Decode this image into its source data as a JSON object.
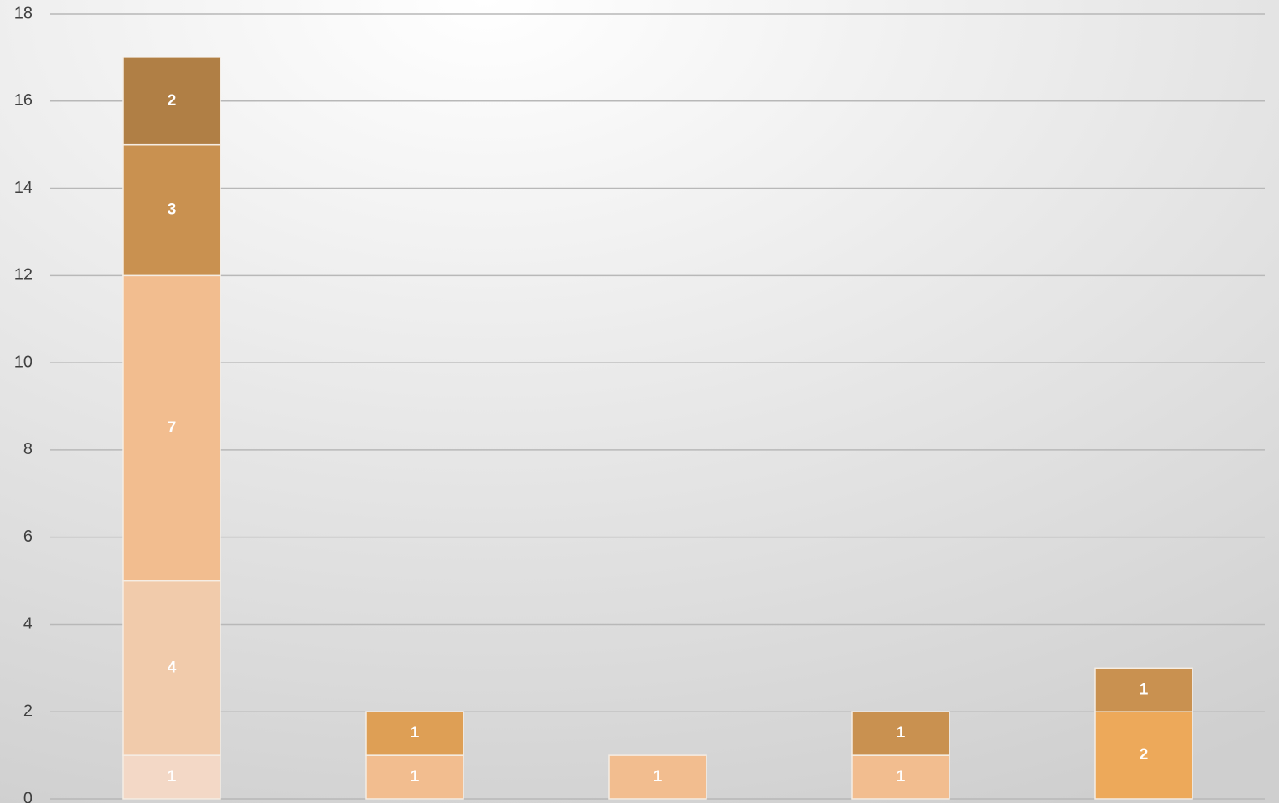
{
  "chart_data": {
    "type": "stacked_bar",
    "categories": [
      null,
      null,
      null,
      null,
      null
    ],
    "series": [
      {
        "color": "#f3d8c6",
        "values": [
          1,
          null,
          null,
          null,
          null
        ]
      },
      {
        "color": "#f1cbab",
        "values": [
          4,
          null,
          null,
          null,
          null
        ]
      },
      {
        "color": "#f2bd8f",
        "values": [
          7,
          1,
          1,
          1,
          null
        ]
      },
      {
        "color": "#de9f55",
        "values": [
          null,
          1,
          null,
          null,
          null
        ]
      },
      {
        "color": "#eda95a",
        "values": [
          null,
          null,
          null,
          null,
          2
        ]
      },
      {
        "color": "#c99150",
        "values": [
          3,
          null,
          null,
          1,
          1
        ]
      },
      {
        "color": "#b07f45",
        "values": [
          2,
          null,
          null,
          null,
          null
        ]
      }
    ],
    "ylim": [
      0,
      18
    ],
    "yticks": [
      0,
      2,
      4,
      6,
      8,
      10,
      12,
      14,
      16,
      18
    ],
    "grid": true
  }
}
